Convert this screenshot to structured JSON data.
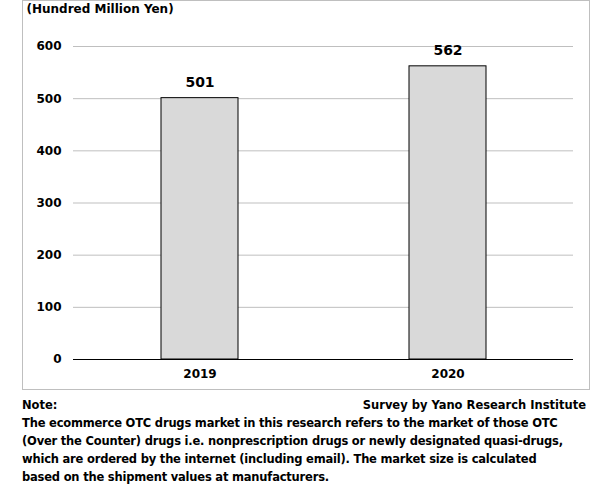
{
  "chart_data": {
    "type": "bar",
    "y_label": "(Hundred Million Yen)",
    "categories": [
      "2019",
      "2020"
    ],
    "values": [
      501,
      562
    ],
    "color": "#d9d9d9",
    "ylim": [
      0,
      600
    ],
    "yticks": [
      0,
      100,
      200,
      300,
      400,
      500,
      600
    ],
    "grid": true,
    "data_labels": true,
    "note_heading": "Note:",
    "source": "Survey by Yano Research Institute",
    "note": [
      "The ecommerce OTC drugs market in this research refers to the market of those OTC",
      "(Over the Counter) drugs i.e. nonprescription drugs or newly designated quasi-drugs,",
      "which are ordered by the internet (including email). The market size is calculated",
      "based on the shipment values at manufacturers."
    ]
  }
}
